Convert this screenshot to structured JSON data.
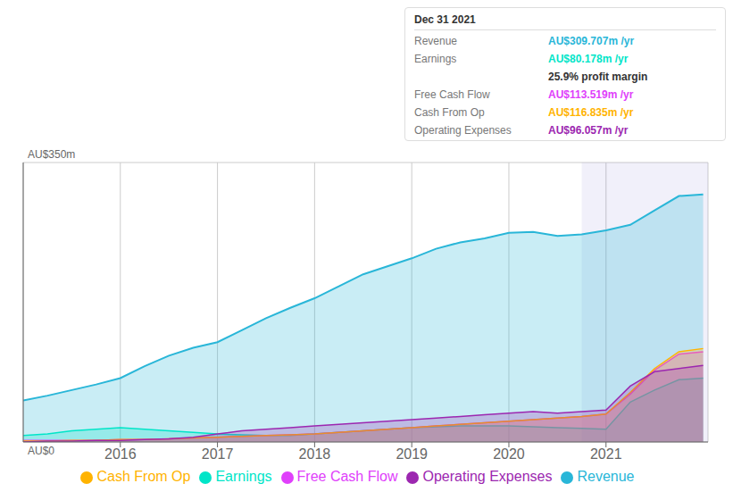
{
  "chart_data": {
    "type": "area",
    "x": [
      2015.0,
      2015.25,
      2015.5,
      2015.75,
      2016.0,
      2016.25,
      2016.5,
      2016.75,
      2017.0,
      2017.25,
      2017.5,
      2017.75,
      2018.0,
      2018.25,
      2018.5,
      2018.75,
      2019.0,
      2019.25,
      2019.5,
      2019.75,
      2020.0,
      2020.25,
      2020.5,
      2020.75,
      2021.0,
      2021.25,
      2021.5,
      2021.75,
      2022.0
    ],
    "xlim": [
      2015.0,
      2022.05
    ],
    "xticks": [
      2016,
      2017,
      2018,
      2019,
      2020,
      2021
    ],
    "ylim": [
      0,
      350
    ],
    "yticks": [
      0,
      87.5,
      175,
      262.5,
      350
    ],
    "tick_labels": "x",
    "grid": true,
    "legend": "bottom",
    "stacked": false,
    "series": [
      {
        "name": "Revenue",
        "color": "#29b6d8",
        "values": [
          52,
          58,
          65,
          72,
          80,
          95,
          108,
          118,
          125,
          140,
          155,
          168,
          180,
          195,
          210,
          220,
          230,
          242,
          250,
          255,
          262,
          263,
          258,
          260,
          265,
          272,
          290,
          308,
          310
        ]
      },
      {
        "name": "Earnings",
        "color": "#00e5c8",
        "values": [
          8,
          10,
          14,
          16,
          18,
          16,
          14,
          12,
          10,
          9,
          8,
          8,
          10,
          12,
          14,
          16,
          18,
          19,
          20,
          20,
          20,
          19,
          18,
          17,
          16,
          50,
          65,
          78,
          80
        ]
      },
      {
        "name": "Free Cash Flow",
        "color": "#e040fb",
        "values": [
          2,
          2,
          2,
          2,
          3,
          3,
          4,
          5,
          6,
          7,
          8,
          9,
          10,
          12,
          14,
          16,
          18,
          20,
          22,
          24,
          26,
          28,
          30,
          32,
          35,
          60,
          90,
          110,
          113
        ]
      },
      {
        "name": "Cash From Op",
        "color": "#ffb300",
        "values": [
          1,
          1,
          2,
          2,
          3,
          3,
          4,
          5,
          6,
          7,
          8,
          9,
          10,
          12,
          14,
          16,
          18,
          20,
          22,
          24,
          26,
          28,
          30,
          32,
          35,
          62,
          92,
          113,
          117
        ]
      },
      {
        "name": "Operating Expenses",
        "color": "#9c27b0",
        "values": [
          0,
          1,
          1,
          2,
          2,
          3,
          4,
          6,
          10,
          14,
          16,
          18,
          20,
          22,
          24,
          26,
          28,
          30,
          32,
          34,
          36,
          38,
          36,
          38,
          40,
          70,
          88,
          92,
          96
        ]
      }
    ],
    "annotations": [
      {
        "text": "AU$350m",
        "y": 350
      },
      {
        "text": "AU$0",
        "y": 0
      }
    ],
    "highlight": [
      2020.75,
      2022.05
    ],
    "info_box": {
      "title": "Dec 31 2021",
      "rows": [
        {
          "label": "Revenue",
          "value": "AU$309.707m /yr",
          "color": "#29b6d8"
        },
        {
          "label": "Earnings",
          "value": "AU$80.178m /yr",
          "color": "#00e5c8"
        },
        {
          "value": "25.9% profit margin"
        },
        {
          "label": "Free Cash Flow",
          "value": "AU$113.519m /yr",
          "color": "#e040fb"
        },
        {
          "label": "Cash From Op",
          "value": "AU$116.835m /yr",
          "color": "#ffb300"
        },
        {
          "label": "Operating Expenses",
          "value": "AU$96.057m /yr",
          "color": "#9c27b0"
        }
      ]
    }
  }
}
